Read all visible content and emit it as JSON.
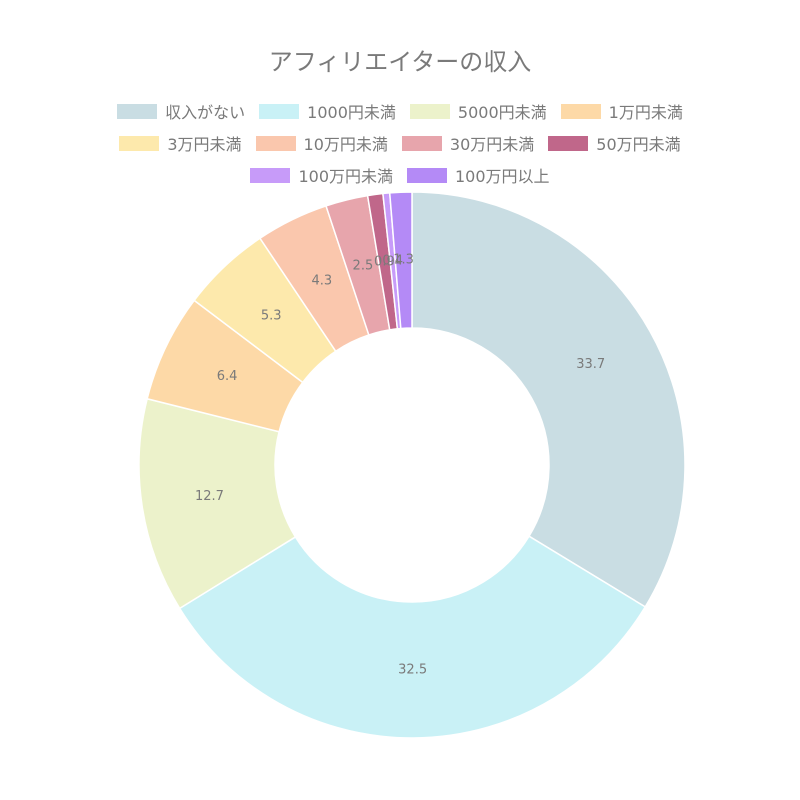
{
  "chart_data": {
    "type": "pie",
    "title": "アフィリエイターの収入",
    "categories": [
      "収入がない",
      "1000円未満",
      "5000円未満",
      "1万円未満",
      "3万円未満",
      "10万円未満",
      "30万円未満",
      "50万円未満",
      "100万円未満",
      "100万円以上"
    ],
    "values": [
      33.7,
      32.5,
      12.7,
      6.4,
      5.3,
      4.3,
      2.5,
      0.9,
      0.4,
      1.3
    ],
    "colors": [
      "#c9dde3",
      "#c9f1f6",
      "#ecf2cb",
      "#fdd9a7",
      "#fde9ac",
      "#fac7ad",
      "#e7a5ac",
      "#c0678a",
      "#c79bf9",
      "#b48af6"
    ],
    "legend_position": "top",
    "donut": true
  }
}
